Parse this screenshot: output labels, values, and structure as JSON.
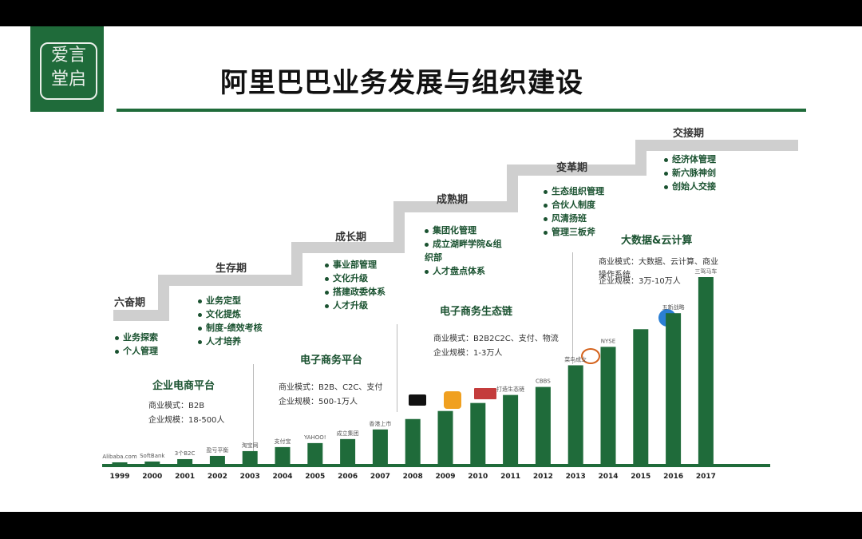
{
  "title": "阿里巴巴业务发展与组织建设",
  "logo": {
    "text": "爱言堂启"
  },
  "stages": [
    {
      "name": "六奋期",
      "bullets": [
        "业务探索",
        "个人管理"
      ]
    },
    {
      "name": "生存期",
      "bullets": [
        "业务定型",
        "文化提炼",
        "制度-绩效考核",
        "人才培养"
      ]
    },
    {
      "name": "成长期",
      "bullets": [
        "事业部管理",
        "文化升级",
        "搭建政委体系",
        "人才升级"
      ]
    },
    {
      "name": "成熟期",
      "bullets": [
        "集团化管理",
        "成立湖畔学院&组织部",
        "人才盘点体系"
      ]
    },
    {
      "name": "变革期",
      "bullets": [
        "生态组织管理",
        "合伙人制度",
        "风清扬班",
        "管理三板斧"
      ]
    },
    {
      "name": "交接期",
      "bullets": [
        "经济体管理",
        "新六脉神剑",
        "创始人交接"
      ]
    }
  ],
  "phases": [
    {
      "title": "企业电商平台",
      "model": "商业模式：B2B",
      "scale": "企业规模：18-500人"
    },
    {
      "title": "电子商务平台",
      "model": "商业模式：B2B、C2C、支付",
      "scale": "企业规模：500-1万人"
    },
    {
      "title": "电子商务生态链",
      "model": "商业模式：B2B2C2C、支付、物流",
      "scale": "企业规模：1-3万人"
    },
    {
      "title": "大数据&云计算",
      "model": "商业模式：大数据、云计算、商业操作系统",
      "scale": "企业规模：3万-10万人"
    }
  ],
  "chart_data": {
    "type": "bar",
    "title": "",
    "xlabel": "",
    "ylabel": "",
    "categories": [
      "1999",
      "2000",
      "2001",
      "2002",
      "2003",
      "2004",
      "2005",
      "2006",
      "2007",
      "2008",
      "2009",
      "2010",
      "2011",
      "2012",
      "2013",
      "2014",
      "2015",
      "2016",
      "2017"
    ],
    "values": [
      4,
      5,
      8,
      12,
      18,
      23,
      28,
      33,
      45,
      58,
      68,
      78,
      88,
      98,
      125,
      148,
      170,
      190,
      235
    ],
    "bar_labels": [
      "Alibaba.com",
      "SoftBank",
      "3个B2C",
      "盈亏平衡",
      "淘宝网",
      "支付宝",
      "YAHOO!",
      "成立集团",
      "香港上市",
      "",
      "",
      "",
      "打造生态链",
      "CBBS",
      "菜鸟成立",
      "NYSE",
      "",
      "五新战略",
      "三驾马车"
    ],
    "bar_color": "#1f6b3a",
    "grid": false
  },
  "colors": {
    "brand": "#1f6b3a",
    "text_green": "#1a5230",
    "stair": "#d0d0d0"
  }
}
